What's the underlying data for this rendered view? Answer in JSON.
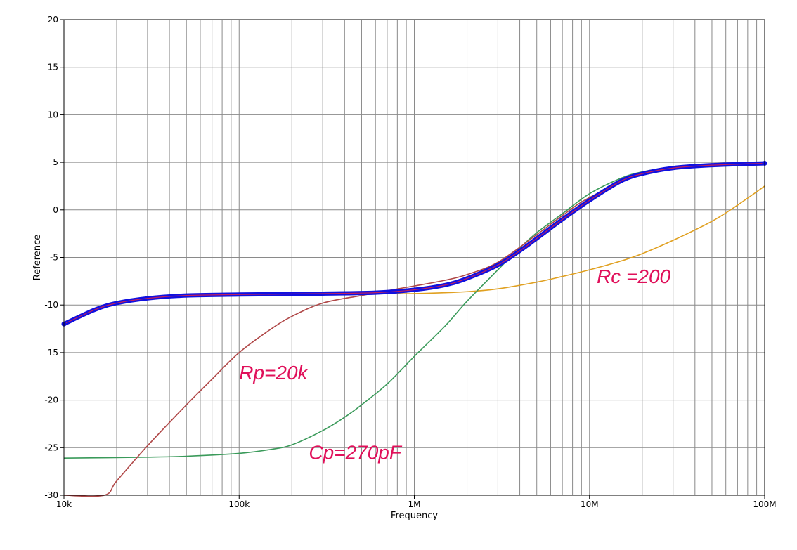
{
  "chart_data": {
    "type": "line",
    "xlabel": "Frequency",
    "ylabel": "Reference",
    "xscale": "log",
    "xlim": [
      10000,
      100000000
    ],
    "ylim": [
      -30,
      20
    ],
    "grid": true,
    "x_ticks": [
      {
        "value": 10000,
        "label": "10k"
      },
      {
        "value": 100000,
        "label": "100k"
      },
      {
        "value": 1000000,
        "label": "1M"
      },
      {
        "value": 10000000,
        "label": "10M"
      },
      {
        "value": 100000000,
        "label": "100M"
      }
    ],
    "y_ticks": [
      {
        "value": 20,
        "label": "20"
      },
      {
        "value": 15,
        "label": "15"
      },
      {
        "value": 10,
        "label": "10"
      },
      {
        "value": 5,
        "label": "5"
      },
      {
        "value": 0,
        "label": "0"
      },
      {
        "value": -5,
        "label": "-5"
      },
      {
        "value": -10,
        "label": "-10"
      },
      {
        "value": -15,
        "label": "-15"
      },
      {
        "value": -20,
        "label": "-20"
      },
      {
        "value": -25,
        "label": "-25"
      },
      {
        "value": -30,
        "label": "-30"
      }
    ],
    "series": [
      {
        "key": "reference",
        "color": "#1010e0",
        "emphasis": "thick",
        "x": [
          10000,
          15000,
          20000,
          30000,
          50000,
          100000,
          300000,
          600000,
          1000000,
          1500000,
          2000000,
          3000000,
          4000000,
          5000000,
          7000000,
          10000000,
          15000000,
          20000000,
          30000000,
          50000000,
          100000000
        ],
        "y": [
          -12.0,
          -10.5,
          -9.8,
          -9.3,
          -9.0,
          -8.9,
          -8.8,
          -8.7,
          -8.4,
          -7.9,
          -7.2,
          -5.8,
          -4.3,
          -3.0,
          -1.0,
          1.0,
          3.0,
          3.8,
          4.4,
          4.7,
          4.9
        ]
      },
      {
        "key": "rp",
        "color": "#b04848",
        "x": [
          10000,
          17000,
          20000,
          30000,
          50000,
          70000,
          100000,
          150000,
          200000,
          300000,
          500000,
          700000,
          1000000,
          1500000,
          2000000,
          3000000,
          5000000,
          7000000,
          10000000,
          20000000,
          50000000,
          100000000
        ],
        "y": [
          -30.0,
          -30.0,
          -28.5,
          -24.8,
          -20.5,
          -17.8,
          -15.0,
          -12.6,
          -11.2,
          -9.8,
          -9.0,
          -8.5,
          -8.0,
          -7.4,
          -6.8,
          -5.5,
          -2.6,
          -0.6,
          1.3,
          3.8,
          4.7,
          4.9
        ]
      },
      {
        "key": "cp",
        "color": "#3a9a5a",
        "x": [
          10000,
          30000,
          50000,
          100000,
          150000,
          200000,
          300000,
          400000,
          500000,
          700000,
          1000000,
          1500000,
          2000000,
          3000000,
          4000000,
          5000000,
          7000000,
          10000000,
          15000000,
          20000000,
          30000000,
          50000000,
          100000000
        ],
        "y": [
          -26.1,
          -26.0,
          -25.9,
          -25.6,
          -25.2,
          -24.7,
          -23.2,
          -21.8,
          -20.5,
          -18.3,
          -15.4,
          -12.2,
          -9.6,
          -6.3,
          -4.0,
          -2.4,
          -0.4,
          1.7,
          3.3,
          4.0,
          4.5,
          4.8,
          5.0
        ]
      },
      {
        "key": "rc",
        "color": "#e0a020",
        "x": [
          600000,
          1000000,
          2000000,
          3000000,
          5000000,
          7000000,
          10000000,
          15000000,
          20000000,
          30000000,
          50000000,
          70000000,
          100000000
        ],
        "y": [
          -8.8,
          -8.8,
          -8.6,
          -8.3,
          -7.6,
          -7.0,
          -6.3,
          -5.4,
          -4.6,
          -3.2,
          -1.2,
          0.5,
          2.5
        ]
      }
    ],
    "annotations": [
      {
        "key": "rp",
        "text": "Rp=20k",
        "x": 100000,
        "y": -17.8
      },
      {
        "key": "cp",
        "text": "Cp=270pF",
        "x": 250000,
        "y": -26.2
      },
      {
        "key": "rc",
        "text": "Rc =200",
        "x": 11000000,
        "y": -7.7
      }
    ]
  }
}
